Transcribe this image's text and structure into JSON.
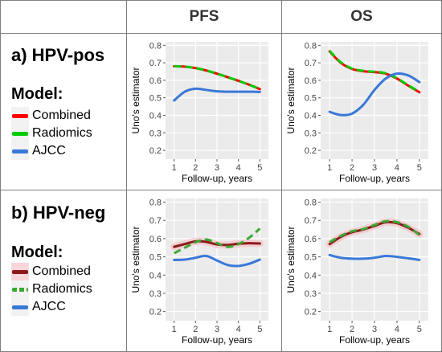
{
  "headers": {
    "pfs": "PFS",
    "os": "OS"
  },
  "rows": [
    {
      "title": "a) HPV-pos",
      "legend_title": "Model:",
      "legend": [
        {
          "label": "Combined",
          "color": "#ff0000",
          "style": "solid"
        },
        {
          "label": "Radiomics",
          "color": "#00cc00",
          "style": "solid"
        },
        {
          "label": "AJCC",
          "color": "#3a78d8",
          "style": "solid"
        }
      ]
    },
    {
      "title": "b) HPV-neg",
      "legend_title": "Model:",
      "legend": [
        {
          "label": "Combined",
          "color": "#8b1a1a",
          "style": "solid"
        },
        {
          "label": "Radiomics",
          "color": "#3aa832",
          "style": "dashed"
        },
        {
          "label": "AJCC",
          "color": "#3a78d8",
          "style": "solid"
        }
      ]
    }
  ],
  "chart_data": [
    {
      "panel": "a-PFS",
      "type": "line",
      "xlabel": "Follow-up, years",
      "ylabel": "Uno's estimator",
      "xlim": [
        0.6,
        5.4
      ],
      "ylim": [
        0.15,
        0.82
      ],
      "xticks": [
        1,
        2,
        3,
        4,
        5
      ],
      "yticks": [
        0.2,
        0.3,
        0.4,
        0.5,
        0.6,
        0.7,
        0.8
      ],
      "grid": true,
      "background": "#ebebeb",
      "series": [
        {
          "name": "Combined",
          "color": "#ff0000",
          "x": [
            1,
            1.5,
            2,
            2.5,
            3,
            3.5,
            4,
            4.5,
            5
          ],
          "y": [
            0.68,
            0.678,
            0.67,
            0.656,
            0.638,
            0.618,
            0.597,
            0.575,
            0.55
          ]
        },
        {
          "name": "Radiomics",
          "color": "#00cc00",
          "dashed": true,
          "x": [
            1,
            1.5,
            2,
            2.5,
            3,
            3.5,
            4,
            4.5,
            5
          ],
          "y": [
            0.68,
            0.678,
            0.67,
            0.656,
            0.638,
            0.618,
            0.597,
            0.575,
            0.55
          ]
        },
        {
          "name": "AJCC",
          "color": "#3a78d8",
          "x": [
            1,
            1.5,
            2,
            2.5,
            3,
            3.5,
            4,
            4.5,
            5
          ],
          "y": [
            0.485,
            0.535,
            0.552,
            0.545,
            0.537,
            0.535,
            0.535,
            0.535,
            0.534
          ]
        }
      ]
    },
    {
      "panel": "a-OS",
      "type": "line",
      "xlabel": "Follow-up, years",
      "ylabel": "Uno's estimator",
      "xlim": [
        0.6,
        5.4
      ],
      "ylim": [
        0.15,
        0.82
      ],
      "xticks": [
        1,
        2,
        3,
        4,
        5
      ],
      "yticks": [
        0.2,
        0.3,
        0.4,
        0.5,
        0.6,
        0.7,
        0.8
      ],
      "grid": true,
      "background": "#ebebeb",
      "series": [
        {
          "name": "Combined",
          "color": "#ff0000",
          "x": [
            1,
            1.5,
            2,
            2.5,
            3,
            3.5,
            4,
            4.5,
            5
          ],
          "y": [
            0.765,
            0.7,
            0.665,
            0.652,
            0.647,
            0.638,
            0.61,
            0.57,
            0.532
          ]
        },
        {
          "name": "Radiomics",
          "color": "#00cc00",
          "dashed": true,
          "x": [
            1,
            1.5,
            2,
            2.5,
            3,
            3.5,
            4,
            4.5,
            5
          ],
          "y": [
            0.768,
            0.703,
            0.667,
            0.654,
            0.649,
            0.64,
            0.612,
            0.572,
            0.534
          ]
        },
        {
          "name": "AJCC",
          "color": "#3a78d8",
          "x": [
            1,
            1.5,
            2,
            2.5,
            3,
            3.5,
            4,
            4.5,
            5
          ],
          "y": [
            0.42,
            0.402,
            0.41,
            0.46,
            0.545,
            0.61,
            0.638,
            0.628,
            0.59
          ]
        }
      ]
    },
    {
      "panel": "b-PFS",
      "type": "line",
      "xlabel": "Follow-up, years",
      "ylabel": "Uno's estimator",
      "xlim": [
        0.6,
        5.4
      ],
      "ylim": [
        0.15,
        0.82
      ],
      "xticks": [
        1,
        2,
        3,
        4,
        5
      ],
      "yticks": [
        0.2,
        0.3,
        0.4,
        0.5,
        0.6,
        0.7,
        0.8
      ],
      "grid": true,
      "background": "#ebebeb",
      "series": [
        {
          "name": "Combined",
          "color": "#8b1a1a",
          "band": "#f4c8cc",
          "x": [
            1,
            1.5,
            2,
            2.5,
            3,
            3.5,
            4,
            4.5,
            5
          ],
          "y": [
            0.555,
            0.57,
            0.585,
            0.582,
            0.568,
            0.565,
            0.572,
            0.575,
            0.573
          ]
        },
        {
          "name": "Radiomics",
          "color": "#3aa832",
          "dashed": true,
          "x": [
            1,
            1.5,
            2,
            2.5,
            3,
            3.5,
            4,
            4.5,
            5
          ],
          "y": [
            0.52,
            0.55,
            0.58,
            0.595,
            0.575,
            0.555,
            0.57,
            0.605,
            0.655
          ]
        },
        {
          "name": "AJCC",
          "color": "#3a78d8",
          "x": [
            1,
            1.5,
            2,
            2.5,
            3,
            3.5,
            4,
            4.5,
            5
          ],
          "y": [
            0.483,
            0.485,
            0.495,
            0.505,
            0.48,
            0.455,
            0.45,
            0.462,
            0.485
          ]
        }
      ]
    },
    {
      "panel": "b-OS",
      "type": "line",
      "xlabel": "Follow-up, years",
      "ylabel": "Uno's estimator",
      "xlim": [
        0.6,
        5.4
      ],
      "ylim": [
        0.15,
        0.82
      ],
      "xticks": [
        1,
        2,
        3,
        4,
        5
      ],
      "yticks": [
        0.2,
        0.3,
        0.4,
        0.5,
        0.6,
        0.7,
        0.8
      ],
      "grid": true,
      "background": "#ebebeb",
      "series": [
        {
          "name": "Combined",
          "color": "#8b1a1a",
          "band": "#f4c8cc",
          "x": [
            1,
            1.5,
            2,
            2.5,
            3,
            3.5,
            4,
            4.5,
            5
          ],
          "y": [
            0.57,
            0.61,
            0.635,
            0.65,
            0.67,
            0.69,
            0.685,
            0.66,
            0.625
          ]
        },
        {
          "name": "Radiomics",
          "color": "#3aa832",
          "dashed": true,
          "x": [
            1,
            1.5,
            2,
            2.5,
            3,
            3.5,
            4,
            4.5,
            5
          ],
          "y": [
            0.58,
            0.615,
            0.64,
            0.652,
            0.675,
            0.695,
            0.69,
            0.665,
            0.62
          ]
        },
        {
          "name": "AJCC",
          "color": "#3a78d8",
          "x": [
            1,
            1.5,
            2,
            2.5,
            3,
            3.5,
            4,
            4.5,
            5
          ],
          "y": [
            0.51,
            0.495,
            0.49,
            0.49,
            0.495,
            0.505,
            0.5,
            0.492,
            0.483
          ]
        }
      ]
    }
  ]
}
